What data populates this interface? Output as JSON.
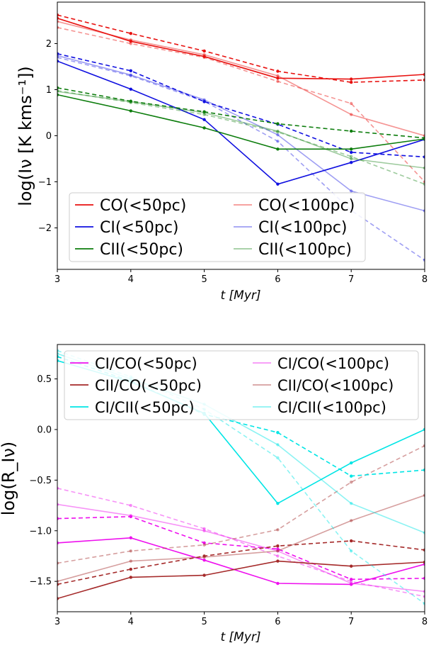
{
  "chart_data": [
    {
      "type": "line",
      "title": "",
      "xlabel": "t [Myr]",
      "ylabel": "log(Iν [K kms⁻¹])",
      "xlim": [
        3,
        8
      ],
      "ylim": [
        -2.9,
        2.9
      ],
      "xticks": [
        "3",
        "4",
        "5",
        "6",
        "7",
        "8"
      ],
      "yticks": [
        "−2",
        "−1",
        "0",
        "1",
        "2"
      ],
      "ytick_values": [
        -2,
        -1,
        0,
        1,
        2
      ],
      "legend_position": "lower-left",
      "x": [
        3,
        4,
        5,
        6,
        7,
        8
      ],
      "series": [
        {
          "name": "CO(<50pc)",
          "color": "#e8110f",
          "alpha": 1.0,
          "solid": [
            2.55,
            2.05,
            1.72,
            1.25,
            1.23,
            1.33
          ],
          "dashed": [
            2.62,
            2.22,
            1.84,
            1.4,
            1.16,
            1.21
          ]
        },
        {
          "name": "CO(<100pc)",
          "color": "#e8110f",
          "alpha": 0.45,
          "solid": [
            2.48,
            2.08,
            1.76,
            1.3,
            0.46,
            0.0
          ],
          "dashed": [
            2.35,
            2.0,
            1.7,
            1.18,
            0.7,
            -1.0
          ]
        },
        {
          "name": "CI(<50pc)",
          "color": "#1010e0",
          "alpha": 1.0,
          "solid": [
            1.62,
            1.01,
            0.35,
            -1.05,
            -0.58,
            -0.08
          ],
          "dashed": [
            1.78,
            1.41,
            0.74,
            0.25,
            -0.36,
            -0.46
          ]
        },
        {
          "name": "CI(<100pc)",
          "color": "#1010e0",
          "alpha": 0.4,
          "solid": [
            1.74,
            1.32,
            0.78,
            0.02,
            -1.2,
            -1.63
          ],
          "dashed": [
            1.7,
            1.3,
            0.75,
            -0.12,
            -1.62,
            -2.7
          ]
        },
        {
          "name": "CII(<50pc)",
          "color": "#0d7d0d",
          "alpha": 1.0,
          "solid": [
            0.89,
            0.54,
            0.17,
            -0.29,
            -0.29,
            -0.07
          ],
          "dashed": [
            1.04,
            0.75,
            0.52,
            0.26,
            0.1,
            -0.05
          ]
        },
        {
          "name": "CII(<100pc)",
          "color": "#0d7d0d",
          "alpha": 0.4,
          "solid": [
            0.96,
            0.74,
            0.5,
            0.1,
            -0.5,
            -0.7
          ],
          "dashed": [
            0.98,
            0.72,
            0.46,
            0.08,
            -0.45,
            -1.05
          ]
        }
      ]
    },
    {
      "type": "line",
      "title": "",
      "xlabel": "t [Myr]",
      "ylabel": "log(R_Iν)",
      "xlim": [
        3,
        8
      ],
      "ylim": [
        -1.8,
        0.84
      ],
      "xticks": [
        "3",
        "4",
        "5",
        "6",
        "7",
        "8"
      ],
      "yticks": [
        "−1.5",
        "−1.0",
        "−0.5",
        "0.0",
        "0.5"
      ],
      "ytick_values": [
        -1.5,
        -1.0,
        -0.5,
        0.0,
        0.5
      ],
      "legend_position": "upper-right",
      "x": [
        3,
        4,
        5,
        6,
        7,
        8
      ],
      "series": [
        {
          "name": "CI/CO(<50pc)",
          "color": "#ee10ee",
          "alpha": 1.0,
          "solid": [
            -1.12,
            -1.07,
            -1.29,
            -1.52,
            -1.53,
            -1.33
          ],
          "dashed": [
            -0.88,
            -0.86,
            -1.12,
            -1.18,
            -1.48,
            -1.47
          ]
        },
        {
          "name": "CI/CO(<100pc)",
          "color": "#ee10ee",
          "alpha": 0.45,
          "solid": [
            -0.74,
            -0.85,
            -1.0,
            -1.2,
            -1.52,
            -1.6
          ],
          "dashed": [
            -0.58,
            -0.75,
            -0.98,
            -1.25,
            -1.5,
            -1.65
          ]
        },
        {
          "name": "CII/CO(<50pc)",
          "color": "#a52a2a",
          "alpha": 1.0,
          "solid": [
            -1.67,
            -1.46,
            -1.44,
            -1.3,
            -1.35,
            -1.31
          ],
          "dashed": [
            -1.53,
            -1.38,
            -1.25,
            -1.15,
            -1.1,
            -1.19
          ]
        },
        {
          "name": "CII/CO(<100pc)",
          "color": "#a52a2a",
          "alpha": 0.45,
          "solid": [
            -1.5,
            -1.3,
            -1.26,
            -1.2,
            -0.9,
            -0.65
          ],
          "dashed": [
            -1.32,
            -1.2,
            -1.14,
            -0.99,
            -0.52,
            -0.16
          ]
        },
        {
          "name": "CI/CII(<50pc)",
          "color": "#00e5e5",
          "alpha": 1.0,
          "solid": [
            0.68,
            0.47,
            0.16,
            -0.73,
            -0.33,
            0.0
          ],
          "dashed": [
            0.72,
            0.48,
            0.15,
            -0.03,
            -0.46,
            -0.4
          ]
        },
        {
          "name": "CI/CII(<100pc)",
          "color": "#00e5e5",
          "alpha": 0.45,
          "solid": [
            0.75,
            0.5,
            0.25,
            -0.15,
            -0.73,
            -1.02
          ],
          "dashed": [
            0.78,
            0.52,
            0.2,
            -0.28,
            -1.2,
            -1.72
          ]
        }
      ]
    }
  ]
}
